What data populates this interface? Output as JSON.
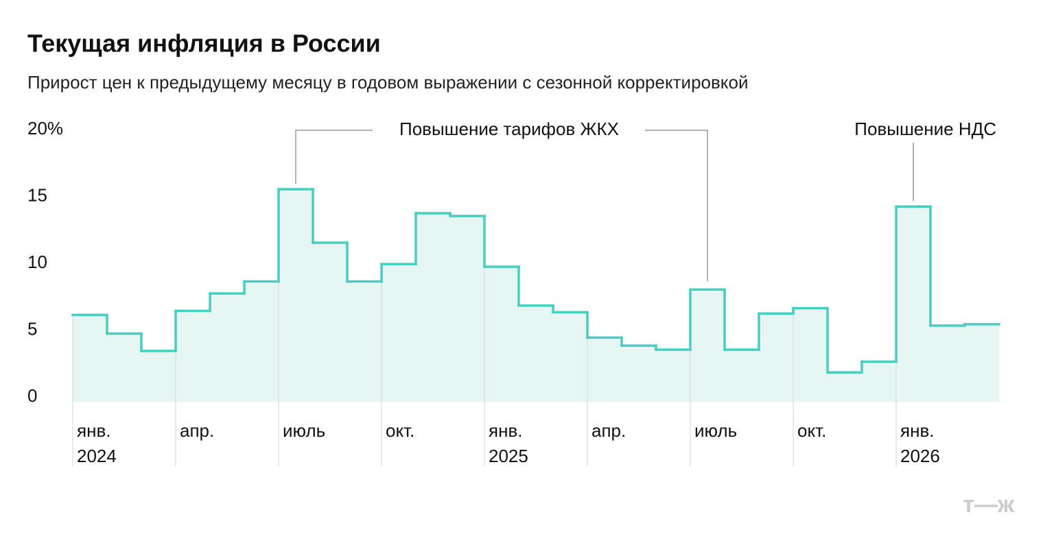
{
  "chart_data": {
    "type": "step",
    "title": "Текущая инфляция в России",
    "subtitle": "Прирост цен к предыдущему месяцу в годовом выражении с сезонной корректировкой",
    "categories": [
      "янв. 2024",
      null,
      null,
      "апр.",
      null,
      null,
      "июль",
      null,
      null,
      "окт.",
      null,
      null,
      "янв. 2025",
      null,
      null,
      "апр.",
      null,
      null,
      "июль",
      null,
      null,
      "окт.",
      null,
      null,
      "янв. 2026",
      null,
      null
    ],
    "values": [
      6.5,
      5.1,
      3.8,
      6.8,
      8.1,
      9.0,
      15.9,
      11.9,
      9.0,
      10.3,
      14.1,
      13.9,
      10.1,
      7.2,
      6.7,
      4.8,
      4.2,
      3.9,
      8.4,
      3.9,
      6.6,
      7.0,
      2.2,
      3.0,
      14.6,
      5.7,
      5.8
    ],
    "color": "#45cfc0",
    "fill_color": "#e5f6f3",
    "ylim": [
      0,
      20
    ],
    "yticks": [
      0,
      5,
      10,
      15,
      {
        "value": 20,
        "label": "20%"
      }
    ],
    "grid": false,
    "annotations": [
      "Повышение тарифов ЖКХ",
      "Повышение НДС"
    ],
    "logo": "т—ж"
  }
}
